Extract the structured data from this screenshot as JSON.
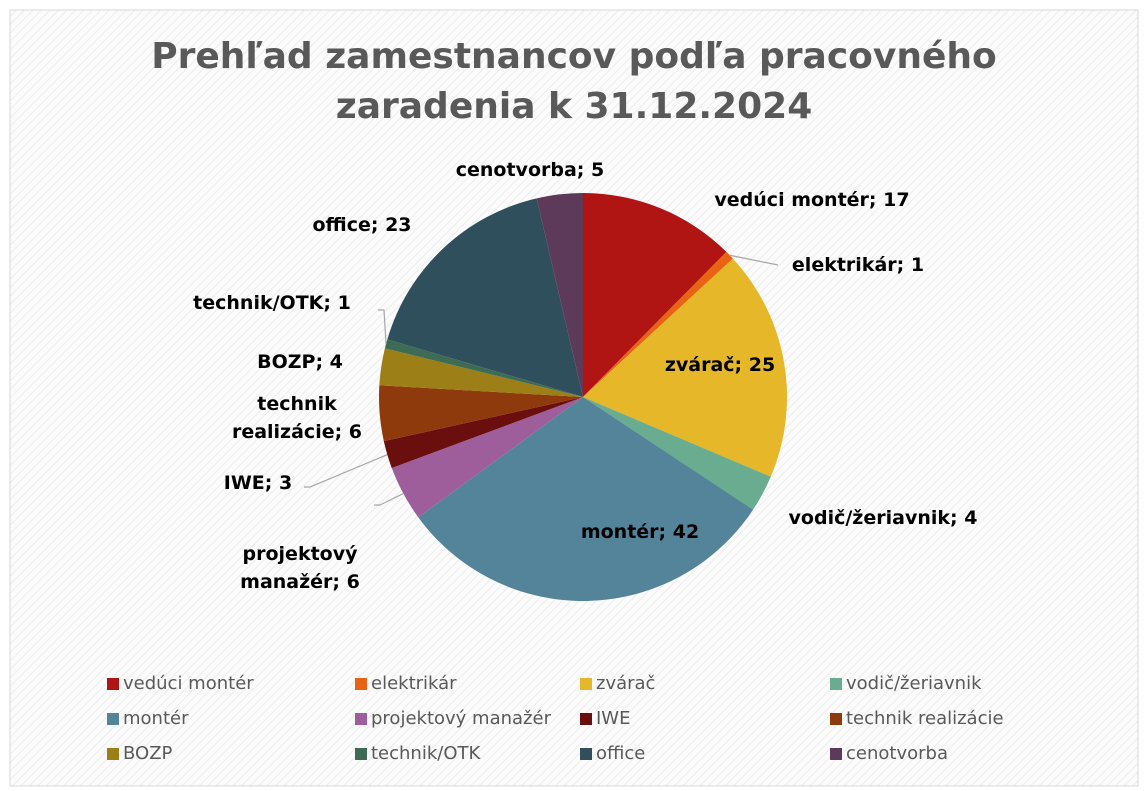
{
  "chart_data": {
    "type": "pie",
    "title": "Prehľad zamestnancov podľa pracovného zaradenia k 31.12.2024",
    "categories": [
      "vedúci montér",
      "elektrikár",
      "zvárač",
      "vodič/žeriavnik",
      "montér",
      "projektový manažér",
      "IWE",
      "technik realizácie",
      "BOZP",
      "technik/OTK",
      "office",
      "cenotvorba"
    ],
    "values": [
      17,
      1,
      25,
      4,
      42,
      6,
      3,
      6,
      4,
      1,
      23,
      5
    ],
    "value_labels": [
      "vedúci montér; 17",
      "elektrikár; 1",
      "zvárač; 25",
      "vodič/žeriavnik; 4",
      "montér; 42",
      "projektový manažér; 6",
      "IWE; 3",
      "technik realizácie; 6",
      "BOZP; 4",
      "technik/OTK; 1",
      "office; 23",
      "cenotvorba; 5"
    ],
    "colors": [
      "#b01513",
      "#ea6312",
      "#e6b729",
      "#6aac90",
      "#54849a",
      "#9e5e9b",
      "#6a0e0e",
      "#8e3a0c",
      "#9c7f17",
      "#3e6b53",
      "#2f4f5c",
      "#5e3a5a"
    ],
    "legend": "bottom"
  }
}
